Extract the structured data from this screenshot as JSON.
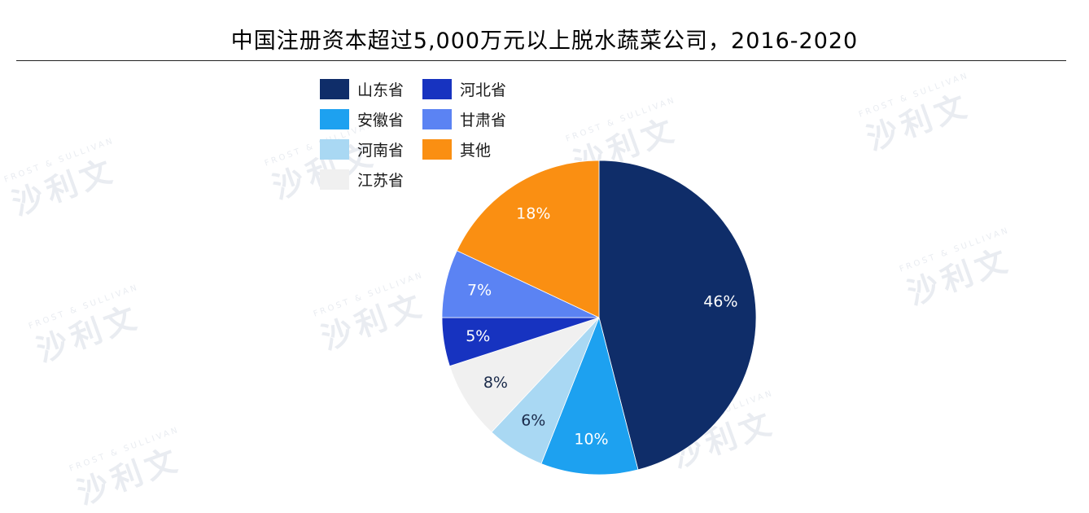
{
  "chart_data": {
    "type": "pie",
    "title": "中国注册资本超过5,000万元以上脱水蔬菜公司，2016-2020",
    "slices": [
      {
        "label": "山东省",
        "value": 46,
        "display": "46%",
        "color": "#0f2d69",
        "text_color": "#ffffff"
      },
      {
        "label": "安徽省",
        "value": 10,
        "display": "10%",
        "color": "#1da1f0",
        "text_color": "#ffffff"
      },
      {
        "label": "河南省",
        "value": 6,
        "display": "6%",
        "color": "#a9d8f3",
        "text_color": "#1a2a4a"
      },
      {
        "label": "江苏省",
        "value": 8,
        "display": "8%",
        "color": "#f0f0f0",
        "text_color": "#1a2a4a"
      },
      {
        "label": "河北省",
        "value": 5,
        "display": "5%",
        "color": "#1733c0",
        "text_color": "#ffffff"
      },
      {
        "label": "甘肃省",
        "value": 7,
        "display": "7%",
        "color": "#5b83f3",
        "text_color": "#ffffff"
      },
      {
        "label": "其他",
        "value": 18,
        "display": "18%",
        "color": "#fa8f12",
        "text_color": "#ffffff"
      }
    ],
    "legend": [
      {
        "label": "山东省",
        "color": "#0f2d69"
      },
      {
        "label": "河北省",
        "color": "#1733c0"
      },
      {
        "label": "安徽省",
        "color": "#1da1f0"
      },
      {
        "label": "甘肃省",
        "color": "#5b83f3"
      },
      {
        "label": "河南省",
        "color": "#a9d8f3"
      },
      {
        "label": "其他",
        "color": "#fa8f12"
      },
      {
        "label": "江苏省",
        "color": "#f0f0f0"
      }
    ],
    "legend_placement": "top-left",
    "grid": false
  },
  "watermark": {
    "brand": "沙利文",
    "latin": "FROST & SULLIVAN"
  }
}
